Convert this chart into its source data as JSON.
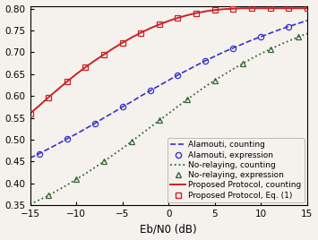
{
  "title": "",
  "xlabel": "Eb/N0 (dB)",
  "ylabel": "",
  "xlim": [
    -15,
    15
  ],
  "ylim": [
    0.35,
    0.805
  ],
  "yticks": [
    0.35,
    0.4,
    0.45,
    0.5,
    0.55,
    0.6,
    0.65,
    0.7,
    0.75,
    0.8
  ],
  "xticks": [
    -15,
    -10,
    -5,
    0,
    5,
    10,
    15
  ],
  "alamouti_counting_x": [
    -15,
    -14,
    -13,
    -12,
    -11,
    -10,
    -9,
    -8,
    -7,
    -6,
    -5,
    -4,
    -3,
    -2,
    -1,
    0,
    1,
    2,
    3,
    4,
    5,
    6,
    7,
    8,
    9,
    10,
    11,
    12,
    13,
    14,
    15
  ],
  "alamouti_counting_y": [
    0.458,
    0.468,
    0.479,
    0.49,
    0.502,
    0.513,
    0.525,
    0.537,
    0.55,
    0.562,
    0.575,
    0.587,
    0.6,
    0.612,
    0.624,
    0.636,
    0.648,
    0.659,
    0.67,
    0.681,
    0.691,
    0.701,
    0.71,
    0.719,
    0.728,
    0.736,
    0.744,
    0.752,
    0.759,
    0.766,
    0.773
  ],
  "alamouti_expr_x": [
    -14,
    -11,
    -8,
    -5,
    -2,
    1,
    4,
    7,
    10,
    13
  ],
  "alamouti_expr_y": [
    0.468,
    0.502,
    0.537,
    0.575,
    0.612,
    0.648,
    0.681,
    0.71,
    0.736,
    0.759
  ],
  "norelaying_counting_x": [
    -15,
    -14,
    -13,
    -12,
    -11,
    -10,
    -9,
    -8,
    -7,
    -6,
    -5,
    -4,
    -3,
    -2,
    -1,
    0,
    1,
    2,
    3,
    4,
    5,
    6,
    7,
    8,
    9,
    10,
    11,
    12,
    13,
    14,
    15
  ],
  "norelaying_counting_y": [
    0.352,
    0.362,
    0.372,
    0.384,
    0.396,
    0.409,
    0.422,
    0.436,
    0.45,
    0.465,
    0.48,
    0.496,
    0.512,
    0.528,
    0.544,
    0.56,
    0.576,
    0.592,
    0.607,
    0.622,
    0.636,
    0.649,
    0.662,
    0.674,
    0.686,
    0.697,
    0.707,
    0.717,
    0.726,
    0.735,
    0.743
  ],
  "norelaying_expr_x": [
    -13,
    -10,
    -7,
    -4,
    -1,
    2,
    5,
    8,
    11,
    14
  ],
  "norelaying_expr_y": [
    0.372,
    0.409,
    0.45,
    0.496,
    0.544,
    0.592,
    0.636,
    0.674,
    0.707,
    0.735
  ],
  "proposed_counting_x": [
    -15,
    -14,
    -13,
    -12,
    -11,
    -10,
    -9,
    -8,
    -7,
    -6,
    -5,
    -4,
    -3,
    -2,
    -1,
    0,
    1,
    2,
    3,
    4,
    5,
    6,
    7,
    8,
    9,
    10,
    11,
    12,
    13,
    14,
    15
  ],
  "proposed_counting_y": [
    0.56,
    0.578,
    0.597,
    0.615,
    0.633,
    0.65,
    0.666,
    0.681,
    0.695,
    0.709,
    0.722,
    0.734,
    0.745,
    0.755,
    0.764,
    0.772,
    0.779,
    0.785,
    0.79,
    0.794,
    0.797,
    0.799,
    0.8,
    0.801,
    0.801,
    0.801,
    0.801,
    0.801,
    0.801,
    0.801,
    0.801
  ],
  "proposed_eq_x": [
    -15,
    -13,
    -11,
    -9,
    -7,
    -5,
    -3,
    -1,
    1,
    3,
    5,
    7,
    9,
    11,
    13,
    15
  ],
  "proposed_eq_y": [
    0.56,
    0.597,
    0.633,
    0.666,
    0.695,
    0.722,
    0.745,
    0.764,
    0.779,
    0.79,
    0.797,
    0.8,
    0.801,
    0.801,
    0.801,
    0.801
  ],
  "color_blue": "#3333cc",
  "color_green": "#336633",
  "color_red": "#cc2222",
  "bg_color": "#f5f2ee",
  "legend_fontsize": 6.5,
  "tick_fontsize": 7.5,
  "xlabel_fontsize": 8.5
}
